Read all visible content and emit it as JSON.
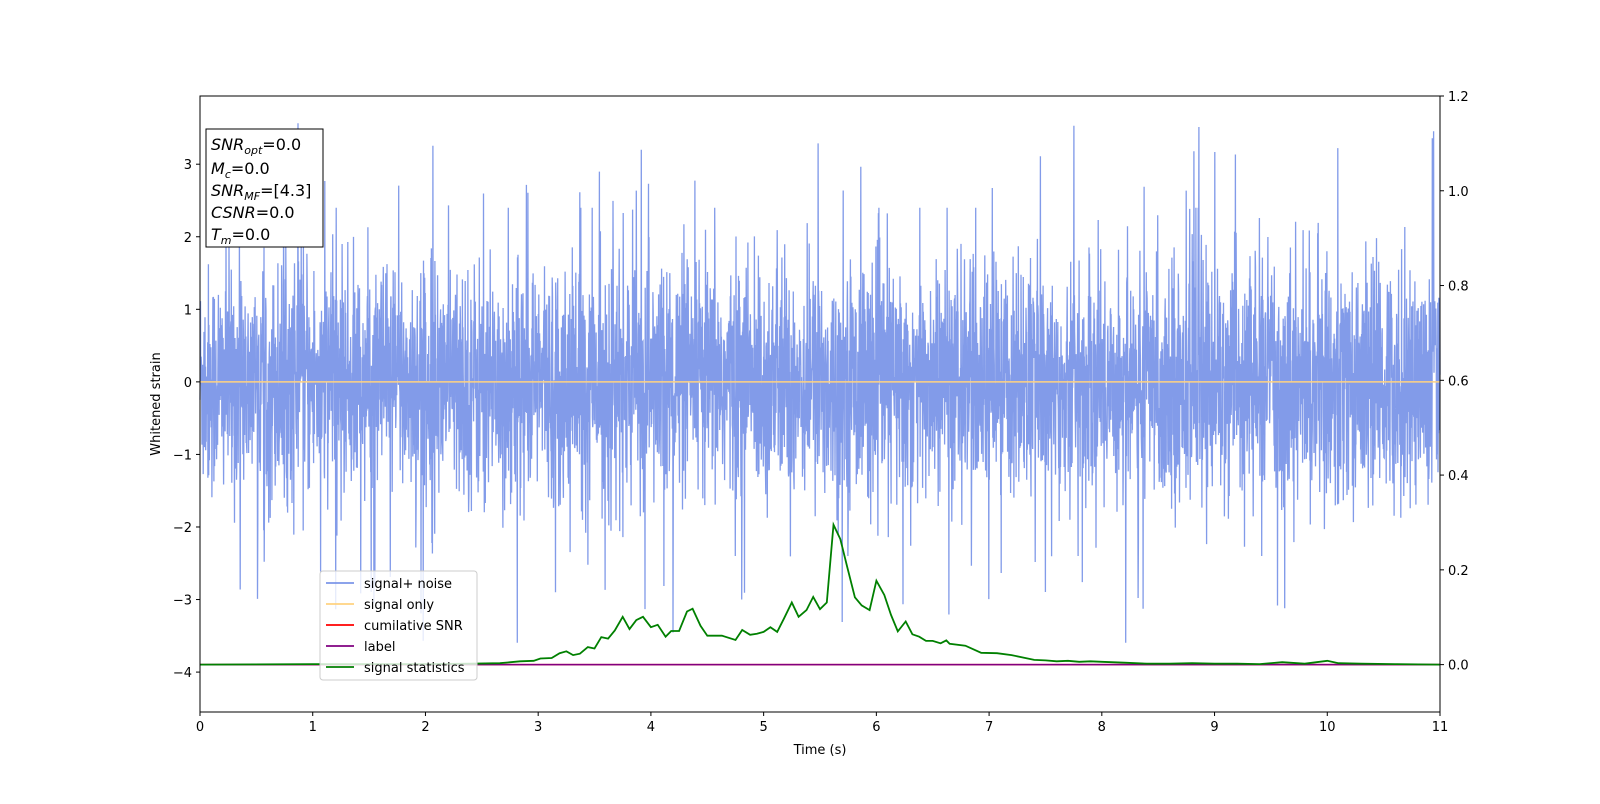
{
  "chart_data": {
    "type": "line",
    "xlabel": "Time (s)",
    "ylabel": "Whitened strain",
    "xlim": [
      0,
      11
    ],
    "ylim": [
      -4.55,
      3.94
    ],
    "y2lim": [
      -0.1,
      1.2
    ],
    "xticks": [
      "0",
      "1",
      "2",
      "3",
      "4",
      "5",
      "6",
      "7",
      "8",
      "9",
      "10",
      "11"
    ],
    "yticks": [
      "−4",
      "−3",
      "−2",
      "−1",
      "0",
      "1",
      "2",
      "3"
    ],
    "y2ticks": [
      "0.0",
      "0.2",
      "0.4",
      "0.6",
      "0.8",
      "1.0",
      "1.2"
    ],
    "legend_position": "lower-left",
    "legend": [
      {
        "label": "signal+ noise",
        "color": "#7b96e8"
      },
      {
        "label": "signal only",
        "color": "#ffd280"
      },
      {
        "label": "cumilative SNR",
        "color": "#ff0000"
      },
      {
        "label": "label",
        "color": "#800080"
      },
      {
        "label": "signal statistics",
        "color": "#008000"
      }
    ],
    "series": [
      {
        "name": "signal+ noise",
        "axis": "left",
        "kind": "noise",
        "std": 0.8,
        "typical_max": 2.4,
        "spike_max": 3.6,
        "samples": 5000
      },
      {
        "name": "signal only",
        "axis": "left",
        "x": [
          0,
          11
        ],
        "y": [
          0,
          0
        ]
      },
      {
        "name": "cumilative SNR",
        "axis": "right",
        "x": [
          0,
          11
        ],
        "y": [
          0,
          0
        ]
      },
      {
        "name": "label",
        "axis": "right",
        "x": [
          0,
          11
        ],
        "y": [
          0,
          0
        ]
      },
      {
        "name": "signal statistics",
        "axis": "right",
        "x": [
          0,
          1,
          2,
          2.4,
          2.66,
          2.84,
          2.96,
          3.02,
          3.12,
          3.19,
          3.25,
          3.31,
          3.37,
          3.44,
          3.5,
          3.56,
          3.62,
          3.68,
          3.75,
          3.81,
          3.87,
          3.93,
          4.0,
          4.06,
          4.13,
          4.18,
          4.25,
          4.32,
          4.37,
          4.44,
          4.5,
          4.63,
          4.75,
          4.81,
          4.88,
          4.94,
          5.0,
          5.06,
          5.12,
          5.18,
          5.25,
          5.31,
          5.38,
          5.44,
          5.5,
          5.56,
          5.62,
          5.68,
          5.74,
          5.81,
          5.87,
          5.94,
          6.0,
          6.07,
          6.13,
          6.19,
          6.26,
          6.32,
          6.38,
          6.44,
          6.5,
          6.57,
          6.62,
          6.65,
          6.79,
          6.93,
          7.07,
          7.2,
          7.3,
          7.4,
          7.5,
          7.6,
          7.7,
          7.8,
          7.9,
          8.0,
          8.2,
          8.4,
          8.6,
          8.8,
          9.0,
          9.2,
          9.4,
          9.6,
          9.8,
          10.0,
          10.1,
          10.3,
          10.6,
          11
        ],
        "y": [
          0,
          0.001,
          0.001,
          0.002,
          0.003,
          0.007,
          0.008,
          0.013,
          0.014,
          0.024,
          0.028,
          0.02,
          0.023,
          0.037,
          0.034,
          0.058,
          0.055,
          0.072,
          0.101,
          0.075,
          0.094,
          0.101,
          0.079,
          0.084,
          0.059,
          0.071,
          0.071,
          0.112,
          0.118,
          0.082,
          0.061,
          0.061,
          0.052,
          0.073,
          0.063,
          0.065,
          0.069,
          0.079,
          0.069,
          0.097,
          0.131,
          0.101,
          0.115,
          0.143,
          0.117,
          0.131,
          0.295,
          0.265,
          0.207,
          0.142,
          0.125,
          0.115,
          0.177,
          0.147,
          0.105,
          0.07,
          0.091,
          0.064,
          0.059,
          0.05,
          0.05,
          0.045,
          0.051,
          0.044,
          0.04,
          0.025,
          0.024,
          0.02,
          0.015,
          0.01,
          0.009,
          0.007,
          0.008,
          0.006,
          0.007,
          0.006,
          0.004,
          0.002,
          0.002,
          0.003,
          0.002,
          0.002,
          0.001,
          0.005,
          0.002,
          0.008,
          0.003,
          0.002,
          0.001,
          0
        ]
      }
    ],
    "annotation": {
      "lines": [
        {
          "base": "SNR",
          "sub": "opt",
          "rest": "=0.0"
        },
        {
          "base": "M",
          "sub": "c",
          "rest": "=0.0"
        },
        {
          "base": "SNR",
          "sub": "MF",
          "rest": "=[4.3]"
        },
        {
          "base": "CSNR",
          "sub": "",
          "rest": "=0.0"
        },
        {
          "base": "T",
          "sub": "m",
          "rest": "=0.0"
        }
      ]
    }
  }
}
